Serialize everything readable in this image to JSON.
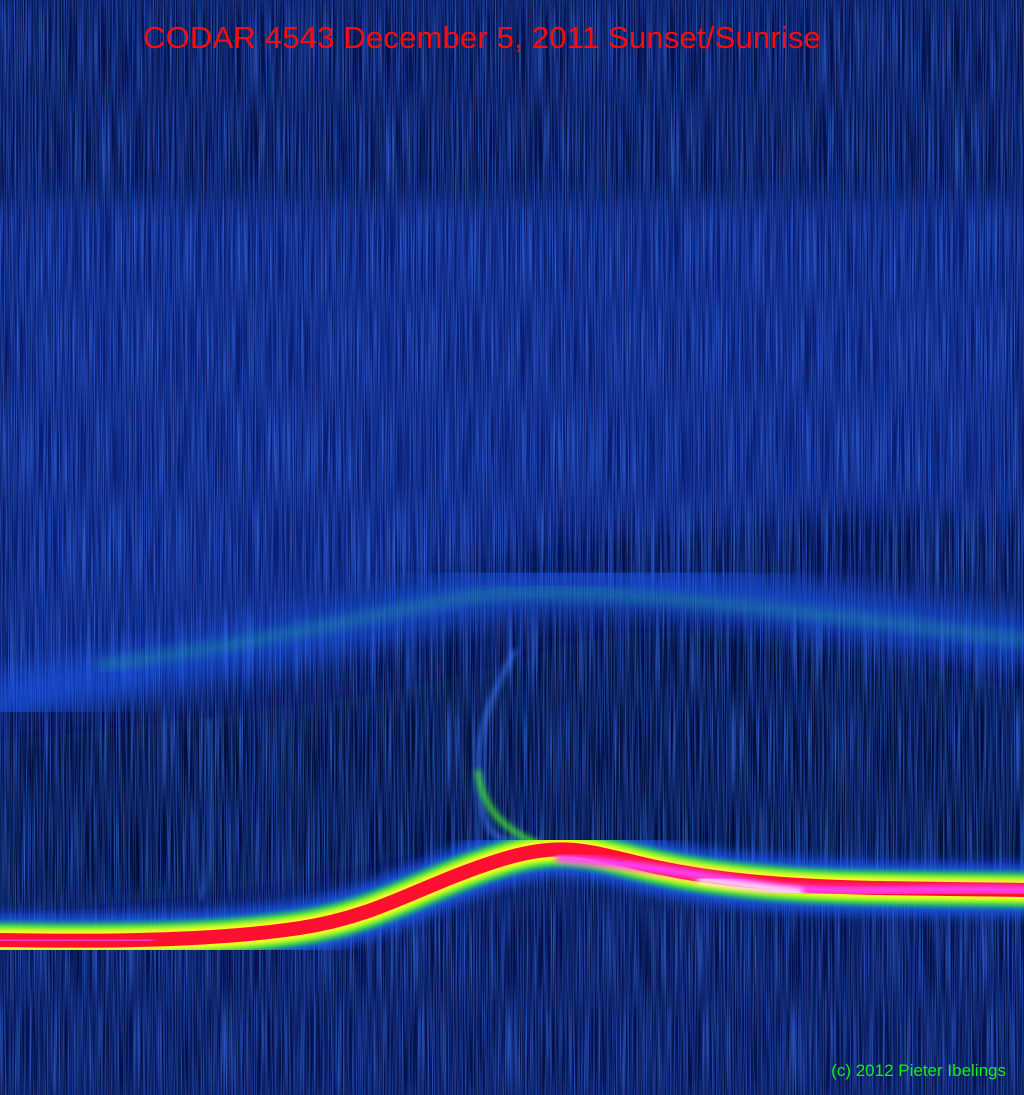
{
  "title": "CODAR 4543 December 5, 2011 Sunset/Sunrise",
  "credit": "(c) 2012 Pieter Ibelings",
  "colors": {
    "background": "#03104a",
    "title": "#ff0a0a",
    "credit": "#10f010",
    "colormap": [
      "#03104a",
      "#1a5cff",
      "#20e040",
      "#ffff20",
      "#ff1030",
      "#ff30ff",
      "#ffffff"
    ]
  }
}
